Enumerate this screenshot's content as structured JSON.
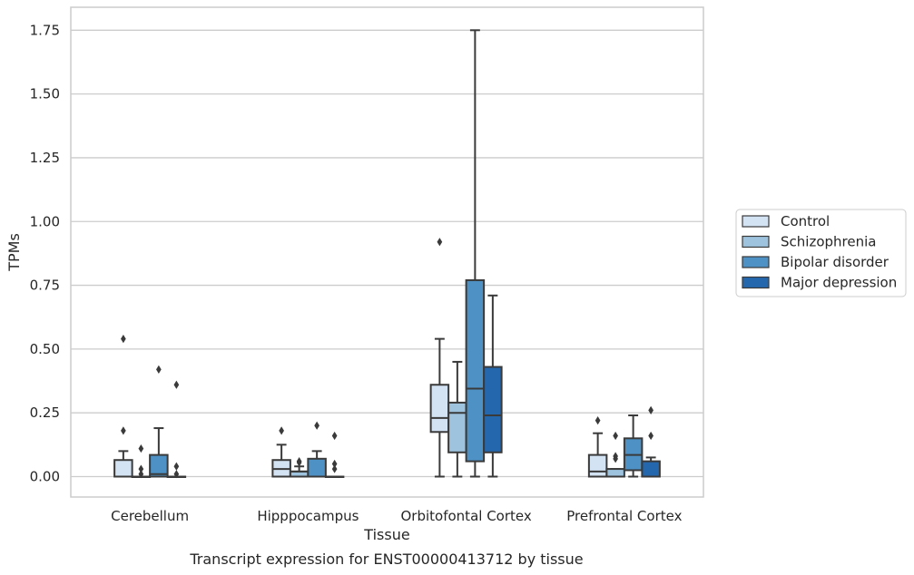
{
  "chart_data": {
    "type": "box",
    "title": "",
    "caption": "Transcript expression for ENST00000413712 by tissue",
    "xlabel": "Tissue",
    "ylabel": "TPMs",
    "ylim": [
      -0.08,
      1.84
    ],
    "yticks": [
      0.0,
      0.25,
      0.5,
      0.75,
      1.0,
      1.25,
      1.5,
      1.75
    ],
    "ytick_labels": [
      "0.00",
      "0.25",
      "0.50",
      "0.75",
      "1.00",
      "1.25",
      "1.50",
      "1.75"
    ],
    "grid": "horizontal",
    "legend_position": "right",
    "categories": [
      "Cerebellum",
      "Hipppocampus",
      "Orbitofontal Cortex",
      "Prefrontal Cortex"
    ],
    "series": [
      {
        "name": "Control",
        "color": "#d4e3f3",
        "boxes": [
          {
            "whislo": 0.0,
            "q1": 0.0,
            "med": 0.0,
            "q3": 0.065,
            "whishi": 0.1,
            "fliers": [
              0.54,
              0.18
            ]
          },
          {
            "whislo": 0.0,
            "q1": 0.0,
            "med": 0.03,
            "q3": 0.065,
            "whishi": 0.125,
            "fliers": [
              0.18
            ]
          },
          {
            "whislo": 0.0,
            "q1": 0.175,
            "med": 0.23,
            "q3": 0.36,
            "whishi": 0.54,
            "fliers": [
              0.92
            ]
          },
          {
            "whislo": 0.0,
            "q1": 0.0,
            "med": 0.02,
            "q3": 0.085,
            "whishi": 0.17,
            "fliers": [
              0.22
            ]
          }
        ]
      },
      {
        "name": "Schizophrenia",
        "color": "#9dc3de",
        "boxes": [
          {
            "whislo": 0.0,
            "q1": 0.0,
            "med": 0.0,
            "q3": 0.0,
            "whishi": 0.0,
            "fliers": [
              0.11,
              0.03,
              0.01
            ]
          },
          {
            "whislo": 0.0,
            "q1": 0.0,
            "med": 0.02,
            "q3": 0.02,
            "whishi": 0.04,
            "fliers": [
              0.06,
              0.055
            ]
          },
          {
            "whislo": 0.0,
            "q1": 0.095,
            "med": 0.25,
            "q3": 0.29,
            "whishi": 0.45,
            "fliers": []
          },
          {
            "whislo": 0.0,
            "q1": 0.0,
            "med": 0.0,
            "q3": 0.03,
            "whishi": 0.03,
            "fliers": [
              0.16,
              0.08,
              0.07
            ]
          }
        ]
      },
      {
        "name": "Bipolar disorder",
        "color": "#4d91c5",
        "boxes": [
          {
            "whislo": 0.0,
            "q1": 0.0,
            "med": 0.01,
            "q3": 0.085,
            "whishi": 0.19,
            "fliers": [
              0.42
            ]
          },
          {
            "whislo": 0.0,
            "q1": 0.0,
            "med": 0.0,
            "q3": 0.07,
            "whishi": 0.1,
            "fliers": [
              0.2
            ]
          },
          {
            "whislo": 0.0,
            "q1": 0.06,
            "med": 0.345,
            "q3": 0.77,
            "whishi": 1.75,
            "fliers": []
          },
          {
            "whislo": 0.0,
            "q1": 0.025,
            "med": 0.085,
            "q3": 0.15,
            "whishi": 0.24,
            "fliers": []
          }
        ]
      },
      {
        "name": "Major depression",
        "color": "#2567ad",
        "boxes": [
          {
            "whislo": 0.0,
            "q1": 0.0,
            "med": 0.0,
            "q3": 0.0,
            "whishi": 0.0,
            "fliers": [
              0.36,
              0.04,
              0.01
            ]
          },
          {
            "whislo": 0.0,
            "q1": 0.0,
            "med": 0.0,
            "q3": 0.0,
            "whishi": 0.0,
            "fliers": [
              0.16,
              0.05,
              0.03
            ]
          },
          {
            "whislo": 0.0,
            "q1": 0.095,
            "med": 0.24,
            "q3": 0.43,
            "whishi": 0.71,
            "fliers": []
          },
          {
            "whislo": 0.0,
            "q1": 0.0,
            "med": 0.0,
            "q3": 0.06,
            "whishi": 0.075,
            "fliers": [
              0.26,
              0.16
            ]
          }
        ]
      }
    ]
  }
}
